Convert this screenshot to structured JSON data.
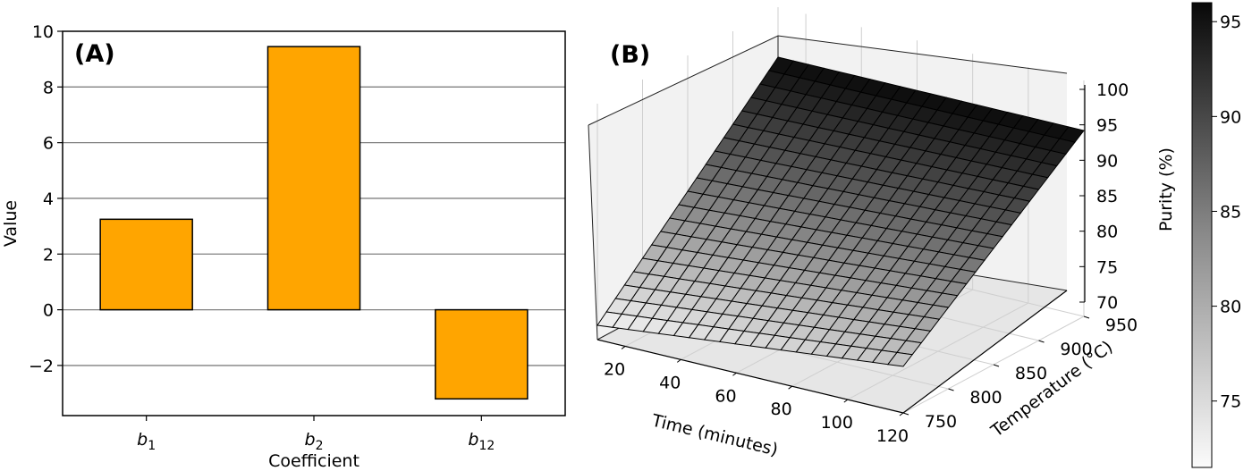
{
  "chart_data": [
    {
      "type": "bar",
      "panel_label": "(A)",
      "categories": [
        "b1",
        "b2",
        "b12"
      ],
      "category_labels": [
        {
          "base": "b",
          "sub": "1"
        },
        {
          "base": "b",
          "sub": "2"
        },
        {
          "base": "b",
          "sub": "12"
        }
      ],
      "values": [
        3.25,
        9.45,
        -3.2
      ],
      "xlabel": "Coefficient",
      "ylabel": "Value",
      "ylim": [
        -3.8,
        10.0
      ],
      "yticks": [
        -2,
        0,
        2,
        4,
        6,
        8,
        10
      ],
      "grid": "horizontal",
      "colors": {
        "bar": "#FFA500",
        "edge": "#000000",
        "grid": "#808080"
      }
    },
    {
      "type": "surface3d",
      "panel_label": "(B)",
      "x": {
        "label": "Time (minutes)",
        "range": [
          10,
          120
        ],
        "ticks": [
          20,
          40,
          60,
          80,
          100,
          120
        ]
      },
      "y": {
        "label": "Temperature (°C)",
        "range": [
          750,
          950
        ],
        "ticks": [
          750,
          800,
          850,
          900,
          950
        ]
      },
      "z": {
        "label": "Purity (%)",
        "range": [
          70,
          100
        ],
        "ticks": [
          70,
          75,
          80,
          85,
          90,
          95,
          100
        ]
      },
      "surface_corners": [
        {
          "time": 10,
          "temperature": 750,
          "purity": 72
        },
        {
          "time": 120,
          "temperature": 750,
          "purity": 76.5
        },
        {
          "time": 10,
          "temperature": 950,
          "purity": 96
        },
        {
          "time": 120,
          "temperature": 950,
          "purity": 96
        }
      ],
      "grid_lines": 20,
      "colormap": "Greys",
      "colorbar": {
        "range": [
          71.5,
          96
        ],
        "ticks": [
          75,
          80,
          85,
          90,
          95
        ]
      }
    }
  ]
}
